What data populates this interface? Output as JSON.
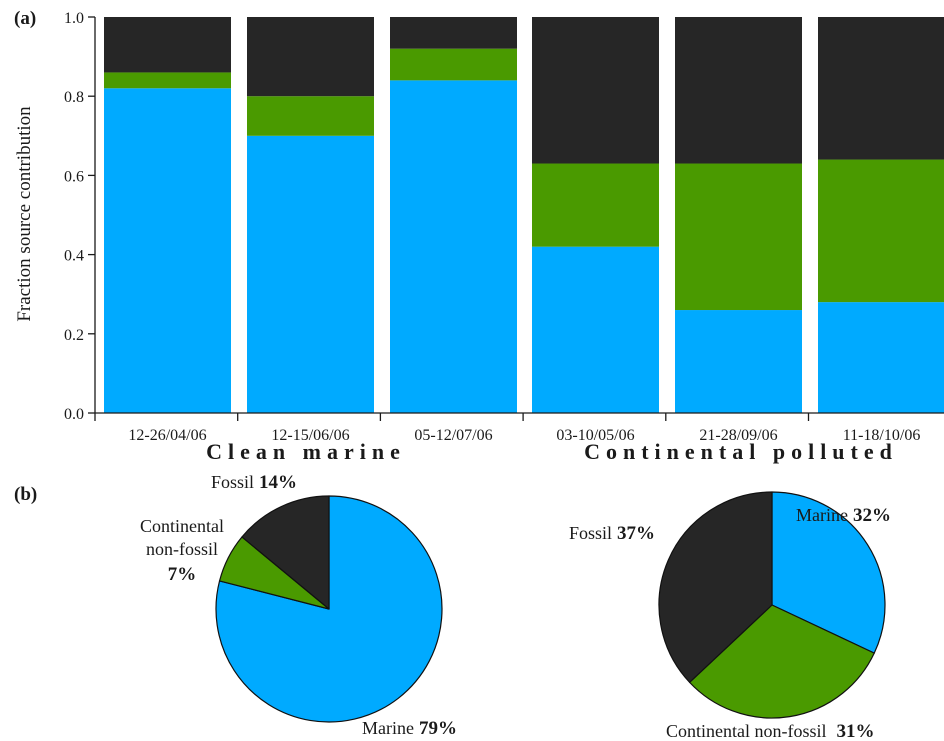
{
  "chart_data": [
    {
      "type": "bar",
      "panel_label": "(a)",
      "stacked": true,
      "ylabel": "Fraction source contribution",
      "ylim": [
        0,
        1.0
      ],
      "yticks": [
        "0.0",
        "0.2",
        "0.4",
        "0.6",
        "0.8",
        "1.0"
      ],
      "categories": [
        "12-26/04/06",
        "12-15/06/06",
        "05-12/07/06",
        "03-10/05/06",
        "21-28/09/06",
        "11-18/10/06"
      ],
      "series": [
        {
          "color": "#00aaff",
          "values": [
            0.82,
            0.7,
            0.84,
            0.42,
            0.26,
            0.28
          ]
        },
        {
          "color": "#4a9a00",
          "values": [
            0.04,
            0.1,
            0.08,
            0.21,
            0.37,
            0.36
          ]
        },
        {
          "color": "#262626",
          "values": [
            0.14,
            0.2,
            0.08,
            0.37,
            0.37,
            0.36
          ]
        }
      ],
      "group_labels": [
        {
          "text": "Clean marine",
          "color": "#00aaff"
        },
        {
          "text": "Continental polluted",
          "color": "#111111"
        }
      ],
      "grid": false
    },
    {
      "type": "pie",
      "panel_label": "(b)",
      "group": "Clean marine",
      "slices": [
        {
          "name": "Marine",
          "pct_label": "79%",
          "value": 79,
          "color": "#00aaff"
        },
        {
          "name": "Continental non-fossil",
          "name_lines": [
            "Continental",
            "non-fossil"
          ],
          "pct_label": "7%",
          "value": 7,
          "color": "#4a9a00"
        },
        {
          "name": "Fossil",
          "pct_label": "14%",
          "value": 14,
          "color": "#262626"
        }
      ]
    },
    {
      "type": "pie",
      "group": "Continental polluted",
      "slices": [
        {
          "name": "Marine",
          "pct_label": "32%",
          "value": 32,
          "color": "#00aaff"
        },
        {
          "name": "Continental non-fossil",
          "pct_label": "31%",
          "value": 31,
          "color": "#4a9a00"
        },
        {
          "name": "Fossil",
          "pct_label": "37%",
          "value": 37,
          "color": "#262626"
        }
      ]
    }
  ]
}
